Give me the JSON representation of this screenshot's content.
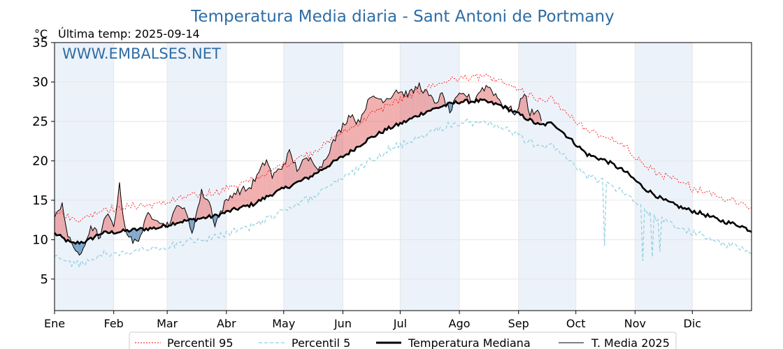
{
  "chart_data": {
    "type": "line",
    "title": "Temperatura Media diaria - Sant Antoni de Portmany",
    "unit_label": "°C",
    "last_temp_label": "Última temp: 2025-09-14",
    "watermark": "WWW.EMBALSES.NET",
    "ylim": [
      1,
      35
    ],
    "xlim": [
      1,
      366
    ],
    "yticks": [
      5,
      10,
      15,
      20,
      25,
      30,
      35
    ],
    "months": [
      {
        "label": "Ene",
        "day": 1
      },
      {
        "label": "Feb",
        "day": 32
      },
      {
        "label": "Mar",
        "day": 60
      },
      {
        "label": "Abr",
        "day": 91
      },
      {
        "label": "May",
        "day": 121
      },
      {
        "label": "Jun",
        "day": 152
      },
      {
        "label": "Jul",
        "day": 182
      },
      {
        "label": "Ago",
        "day": 213
      },
      {
        "label": "Sep",
        "day": 244
      },
      {
        "label": "Oct",
        "day": 274
      },
      {
        "label": "Nov",
        "day": 305
      },
      {
        "label": "Dic",
        "day": 335
      }
    ],
    "grid": true,
    "legend_position": "bottom",
    "legend": {
      "p95": "Percentil 95",
      "p5": "Percentil 5",
      "median": "Temperatura Mediana",
      "current": "T. Media 2025"
    },
    "colors": {
      "p95": "#ff0000",
      "p5": "#8ecfe0",
      "median": "#000000",
      "current": "#000000",
      "above": "#e87a7a",
      "below": "#5a8cb8",
      "band": "#dce8f5",
      "title": "#2e6da4"
    },
    "median_anchors": [
      [
        1,
        10.8
      ],
      [
        10,
        9.5
      ],
      [
        18,
        9.8
      ],
      [
        25,
        10.8
      ],
      [
        35,
        11.0
      ],
      [
        45,
        11.3
      ],
      [
        55,
        11.5
      ],
      [
        65,
        12.2
      ],
      [
        75,
        12.6
      ],
      [
        85,
        13.0
      ],
      [
        95,
        13.8
      ],
      [
        105,
        14.5
      ],
      [
        115,
        15.8
      ],
      [
        125,
        16.9
      ],
      [
        135,
        18.0
      ],
      [
        145,
        19.5
      ],
      [
        155,
        21.0
      ],
      [
        165,
        22.7
      ],
      [
        175,
        24.0
      ],
      [
        185,
        25.0
      ],
      [
        195,
        26.2
      ],
      [
        205,
        27.0
      ],
      [
        213,
        27.5
      ],
      [
        225,
        27.6
      ],
      [
        235,
        27.0
      ],
      [
        245,
        25.8
      ],
      [
        255,
        24.5
      ],
      [
        262,
        24.8
      ],
      [
        270,
        23.0
      ],
      [
        280,
        20.8
      ],
      [
        290,
        20.0
      ],
      [
        300,
        18.6
      ],
      [
        310,
        16.5
      ],
      [
        320,
        15.0
      ],
      [
        330,
        14.0
      ],
      [
        340,
        13.3
      ],
      [
        350,
        12.4
      ],
      [
        360,
        11.8
      ],
      [
        366,
        11.1
      ]
    ],
    "median_noise": 0.5,
    "p95_offset": 3.0,
    "p95_noise": 0.8,
    "p5_offset": 2.4,
    "p5_noise": 0.7,
    "p5_dips": [
      {
        "day": 289,
        "to": 9.2
      },
      {
        "day": 309,
        "to": 7.3
      },
      {
        "day": 314,
        "to": 7.8
      },
      {
        "day": 318,
        "to": 8.5
      }
    ],
    "current_anchors": [
      [
        1,
        12.5
      ],
      [
        5,
        14.8
      ],
      [
        8,
        10.2
      ],
      [
        12,
        8.8
      ],
      [
        15,
        7.8
      ],
      [
        20,
        11.8
      ],
      [
        25,
        10.2
      ],
      [
        28,
        13.2
      ],
      [
        32,
        11.8
      ],
      [
        35,
        16.8
      ],
      [
        38,
        11.5
      ],
      [
        42,
        9.5
      ],
      [
        46,
        10.5
      ],
      [
        50,
        13.2
      ],
      [
        55,
        12.8
      ],
      [
        58,
        11.8
      ],
      [
        62,
        12.3
      ],
      [
        66,
        14.8
      ],
      [
        70,
        13.2
      ],
      [
        73,
        11.0
      ],
      [
        78,
        16.0
      ],
      [
        82,
        14.8
      ],
      [
        85,
        12.0
      ],
      [
        90,
        14.5
      ],
      [
        94,
        15.8
      ],
      [
        98,
        16.2
      ],
      [
        103,
        16.5
      ],
      [
        108,
        18.4
      ],
      [
        112,
        20.2
      ],
      [
        115,
        18.0
      ],
      [
        120,
        19.2
      ],
      [
        124,
        21.0
      ],
      [
        128,
        19.0
      ],
      [
        132,
        20.0
      ],
      [
        136,
        20.2
      ],
      [
        140,
        19.0
      ],
      [
        144,
        21.0
      ],
      [
        148,
        22.8
      ],
      [
        152,
        24.5
      ],
      [
        156,
        26.0
      ],
      [
        160,
        24.8
      ],
      [
        164,
        27.0
      ],
      [
        168,
        28.2
      ],
      [
        172,
        27.8
      ],
      [
        176,
        28.0
      ],
      [
        180,
        29.0
      ],
      [
        184,
        28.5
      ],
      [
        188,
        28.6
      ],
      [
        192,
        29.6
      ],
      [
        196,
        28.5
      ],
      [
        200,
        27.4
      ],
      [
        204,
        28.3
      ],
      [
        208,
        26.2
      ],
      [
        212,
        28.0
      ],
      [
        216,
        28.5
      ],
      [
        220,
        27.5
      ],
      [
        224,
        29.0
      ],
      [
        228,
        29.5
      ],
      [
        232,
        28.4
      ],
      [
        236,
        27.0
      ],
      [
        240,
        26.5
      ],
      [
        243,
        26.0
      ],
      [
        247,
        28.8
      ],
      [
        250,
        26.0
      ],
      [
        253,
        26.3
      ],
      [
        256,
        25.5
      ]
    ],
    "current_noise": 1.0
  }
}
